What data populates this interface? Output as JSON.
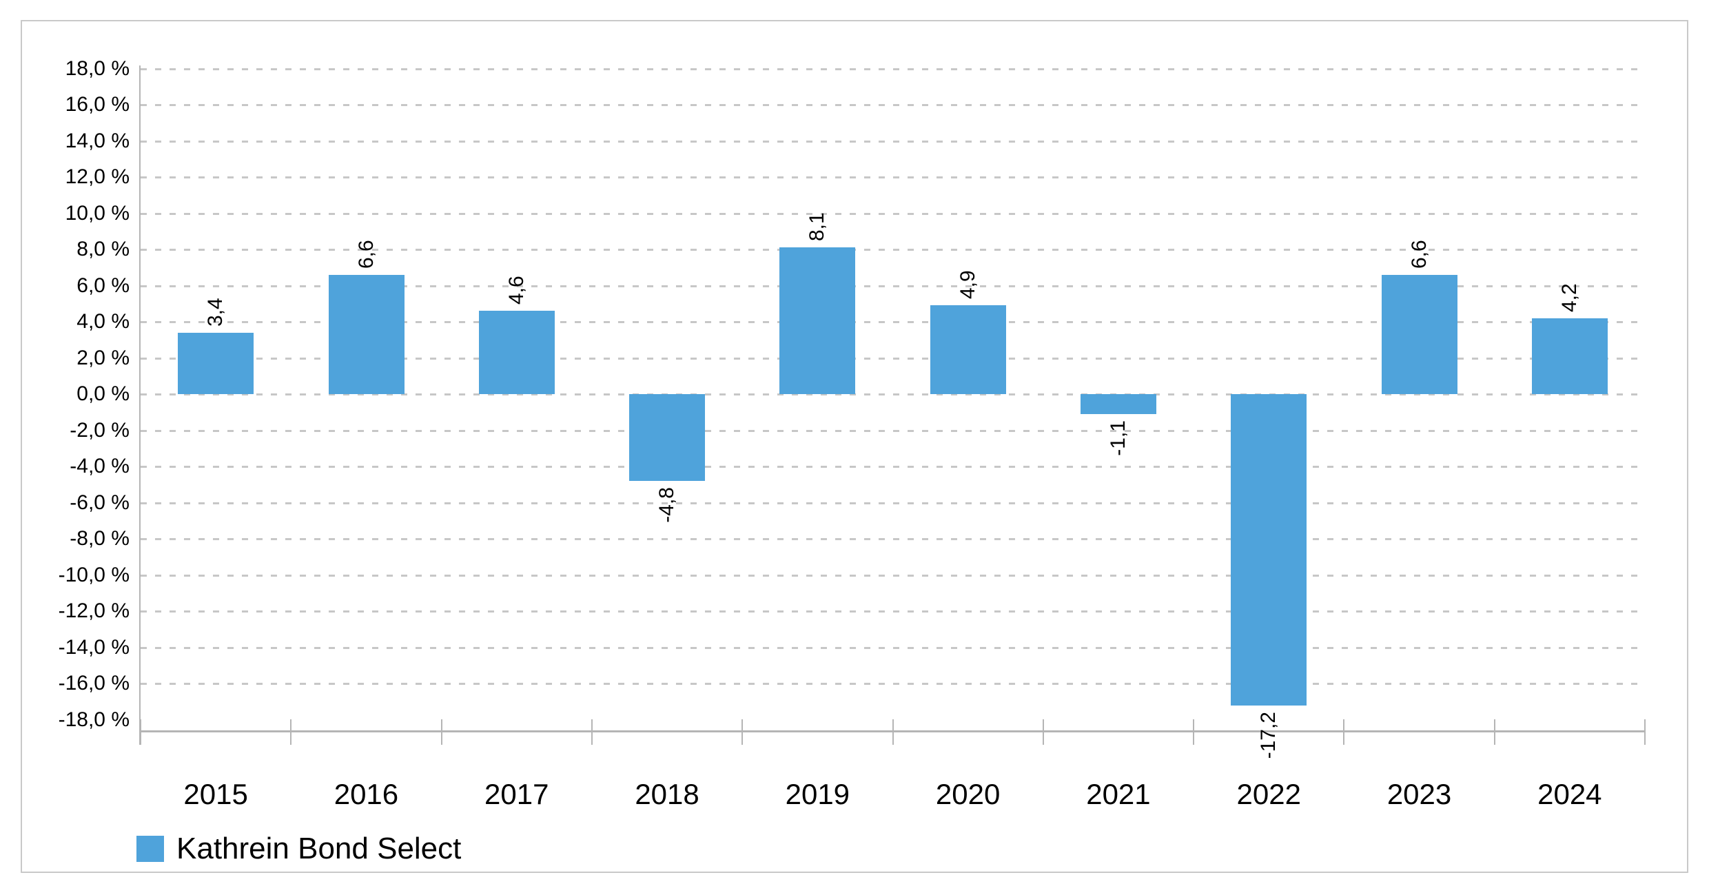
{
  "chart": {
    "legend": {
      "label": "Kathrein Bond Select"
    }
  },
  "chart_data": {
    "type": "bar",
    "title": "",
    "categories": [
      "2015",
      "2016",
      "2017",
      "2018",
      "2019",
      "2020",
      "2021",
      "2022",
      "2023",
      "2024"
    ],
    "series": [
      {
        "name": "Kathrein Bond Select",
        "values": [
          3.4,
          6.6,
          4.6,
          -4.8,
          8.1,
          4.9,
          -1.1,
          -17.2,
          6.6,
          4.2
        ],
        "data_labels": [
          "3,4",
          "6,6",
          "4,6",
          "-4,8",
          "8,1",
          "4,9",
          "-1,1",
          "-17,2",
          "6,6",
          "4,2"
        ]
      }
    ],
    "xlabel": "",
    "ylabel": "",
    "ylim_labeled": [
      -18,
      18
    ],
    "y_axis": {
      "ticks": [
        {
          "value": 18,
          "label": "18,0 %"
        },
        {
          "value": 16,
          "label": "16,0 %"
        },
        {
          "value": 14,
          "label": "14,0 %"
        },
        {
          "value": 12,
          "label": "12,0 %"
        },
        {
          "value": 10,
          "label": "10,0 %"
        },
        {
          "value": 8,
          "label": "8,0 %"
        },
        {
          "value": 6,
          "label": "6,0 %"
        },
        {
          "value": 4,
          "label": "4,0 %"
        },
        {
          "value": 2,
          "label": "2,0 %"
        },
        {
          "value": 0,
          "label": "0,0 %"
        },
        {
          "value": -2,
          "label": "-2,0 %"
        },
        {
          "value": -4,
          "label": "-4,0 %"
        },
        {
          "value": -6,
          "label": "-6,0 %"
        },
        {
          "value": -8,
          "label": "-8,0 %"
        },
        {
          "value": -10,
          "label": "-10,0 %"
        },
        {
          "value": -12,
          "label": "-12,0 %"
        },
        {
          "value": -14,
          "label": "-14,0 %"
        },
        {
          "value": -16,
          "label": "-16,0 %"
        },
        {
          "value": -18,
          "label": "-18,0 %"
        }
      ]
    },
    "grid": "horizontal dashed, every 2 %, none at -18 %",
    "legend_position": "bottom-left",
    "data_label_rotation": "vertical, reading bottom-to-top",
    "colors": {
      "bar": "#4FA3DB",
      "grid": "#c7c7c7",
      "axis": "#b5b5b5",
      "text": "#000000",
      "card_border": "#c9c9c9",
      "background": "#ffffff"
    }
  }
}
